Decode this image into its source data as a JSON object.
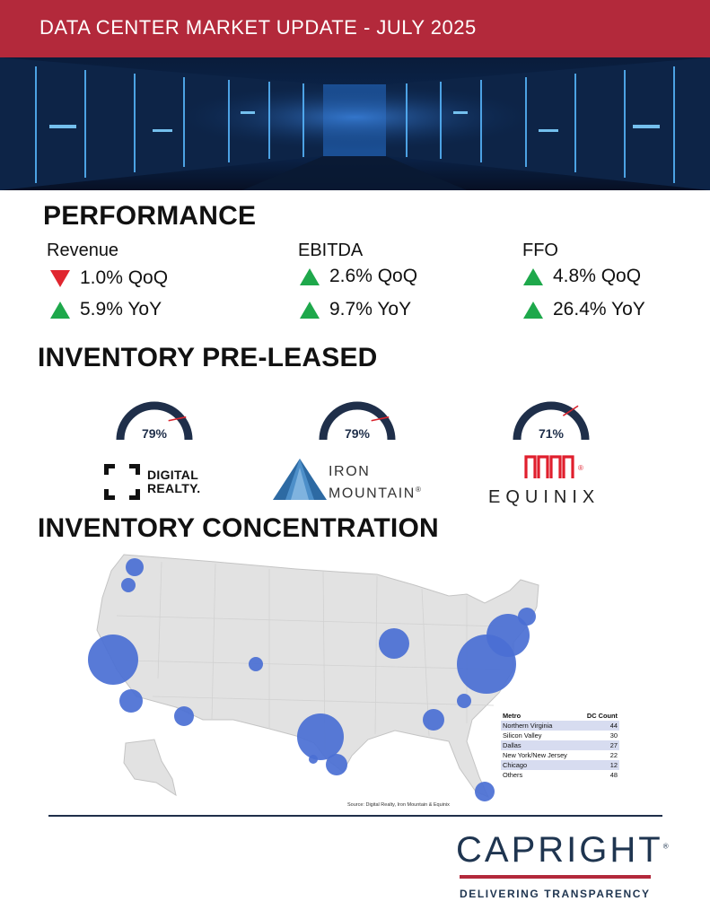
{
  "header": {
    "title": "DATA CENTER MARKET UPDATE - JULY 2025"
  },
  "performance": {
    "title": "PERFORMANCE",
    "metrics": [
      {
        "label": "Revenue",
        "qoq": "1.0% QoQ",
        "qoq_dir": "down",
        "yoy": "5.9% YoY",
        "yoy_dir": "up"
      },
      {
        "label": "EBITDA",
        "qoq": "2.6% QoQ",
        "qoq_dir": "up",
        "yoy": "9.7% YoY",
        "yoy_dir": "up"
      },
      {
        "label": "FFO",
        "qoq": "4.8% QoQ",
        "qoq_dir": "up",
        "yoy": "26.4% YoY",
        "yoy_dir": "up"
      }
    ]
  },
  "preleased": {
    "title": "INVENTORY PRE-LEASED",
    "gauges": [
      {
        "company": "Digital Realty",
        "value_label": "79%",
        "value": 0.79,
        "logo_lines": [
          "DIGITAL",
          "REALTY."
        ]
      },
      {
        "company": "Iron Mountain",
        "value_label": "79%",
        "value": 0.79,
        "logo_lines": [
          "IRON",
          "MOUNTAIN",
          "®"
        ]
      },
      {
        "company": "Equinix",
        "value_label": "71%",
        "value": 0.71,
        "logo_lines": [
          "EQUINIX",
          "®"
        ]
      }
    ]
  },
  "concentration": {
    "title": "INVENTORY CONCENTRATION",
    "table": {
      "headers": [
        "Metro",
        "DC Count"
      ],
      "rows": [
        {
          "metro": "Northern Virginia",
          "count": "44"
        },
        {
          "metro": "Silicon Valley",
          "count": "30"
        },
        {
          "metro": "Dallas",
          "count": "27"
        },
        {
          "metro": "New York/New Jersey",
          "count": "22"
        },
        {
          "metro": "Chicago",
          "count": "12"
        },
        {
          "metro": "Others",
          "count": "48"
        }
      ]
    },
    "source": "Source: Digital Realty, Iron Mountain & Equinix"
  },
  "footer": {
    "brand": "CAPRIGHT",
    "tagline": "DELIVERING TRANSPARENCY",
    "reg": "®"
  },
  "colors": {
    "accent": "#b3293b",
    "navy": "#1f2f4a",
    "up": "#1ea84b",
    "down": "#e0262f",
    "bubble": "#4a6fd4"
  }
}
